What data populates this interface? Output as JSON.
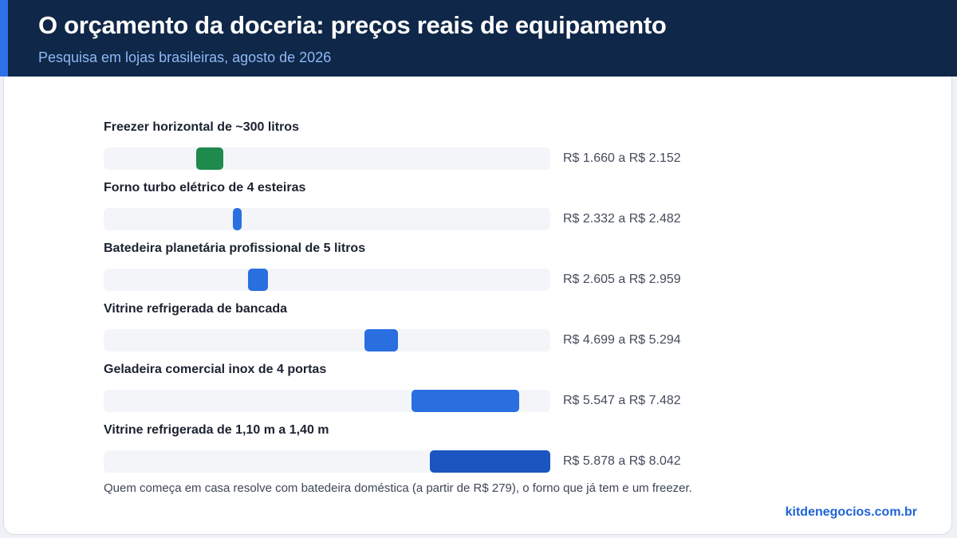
{
  "header": {
    "title": "O orçamento da doceria: preços reais de equipamento",
    "subtitle": "Pesquisa em lojas brasileiras, agosto de 2026"
  },
  "chart_data": {
    "type": "bar",
    "orientation": "horizontal-range",
    "title": "O orçamento da doceria: preços reais de equipamento",
    "subtitle": "Pesquisa em lojas brasileiras, agosto de 2026",
    "xlim": [
      0,
      8042
    ],
    "grid": false,
    "items": [
      {
        "label": "Freezer horizontal de ~300 litros",
        "min": 1660,
        "max": 2152,
        "range_text": "R$ 1.660 a R$ 2.152",
        "color": "#1e8a4c"
      },
      {
        "label": "Forno turbo elétrico de 4 esteiras",
        "min": 2332,
        "max": 2482,
        "range_text": "R$ 2.332 a R$ 2.482",
        "color": "#2a6fe0"
      },
      {
        "label": "Batedeira planetária profissional de 5 litros",
        "min": 2605,
        "max": 2959,
        "range_text": "R$ 2.605 a R$ 2.959",
        "color": "#2a6fe0"
      },
      {
        "label": "Vitrine refrigerada de bancada",
        "min": 4699,
        "max": 5294,
        "range_text": "R$ 4.699 a R$ 5.294",
        "color": "#2a6fe0"
      },
      {
        "label": "Geladeira comercial inox de 4 portas",
        "min": 5547,
        "max": 7482,
        "range_text": "R$ 5.547 a R$ 7.482",
        "color": "#2a6fe0"
      },
      {
        "label": "Vitrine refrigerada de 1,10 m a 1,40 m",
        "min": 5878,
        "max": 8042,
        "range_text": "R$ 5.878 a R$ 8.042",
        "color": "#1a55c0"
      }
    ]
  },
  "footnote": "Quem começa em casa resolve com batedeira doméstica (a partir de R$ 279), o forno que já tem e um freezer.",
  "brand": "kitdenegocios.com.br"
}
